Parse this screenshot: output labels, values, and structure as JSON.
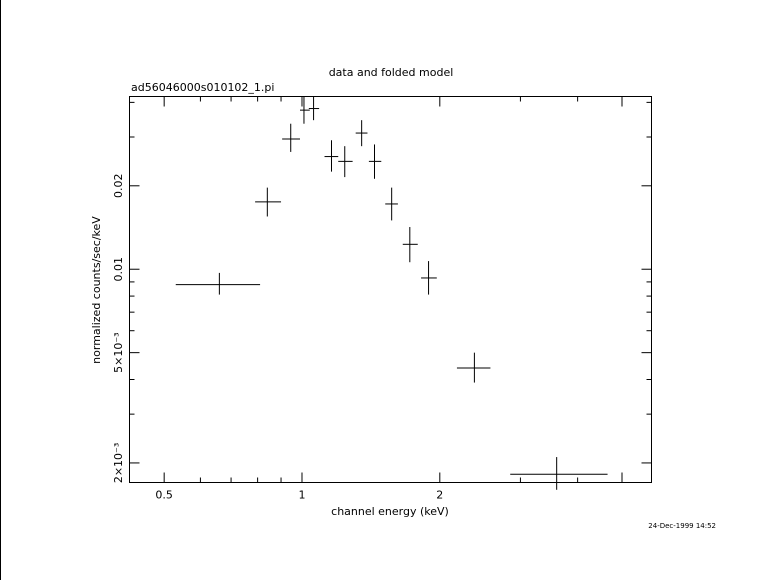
{
  "chart_data": {
    "type": "scatter",
    "title": "data and folded model",
    "subtitle": "ad56046000s010102_1.pi",
    "xlabel": "channel energy (keV)",
    "ylabel": "normalized counts/sec/keV",
    "xscale": "log",
    "yscale": "log",
    "xlim": [
      0.42,
      5.8
    ],
    "ylim": [
      0.0017,
      0.042
    ],
    "x_ticklabels": [
      "0.5",
      "1",
      "2"
    ],
    "y_ticklabels": [
      "2×10⁻³",
      "5×10⁻³",
      "0.01",
      "0.02"
    ],
    "timestamp": "24-Dec-1999 14:52",
    "series": [
      {
        "points": [
          {
            "x": 0.66,
            "xlo": 0.53,
            "xhi": 0.81,
            "y": 0.0088,
            "ylo": 0.0081,
            "yhi": 0.0097
          },
          {
            "x": 0.84,
            "xlo": 0.79,
            "xhi": 0.9,
            "y": 0.0175,
            "ylo": 0.0155,
            "yhi": 0.0197
          },
          {
            "x": 0.945,
            "xlo": 0.905,
            "xhi": 0.99,
            "y": 0.0295,
            "ylo": 0.0265,
            "yhi": 0.0335
          },
          {
            "x": 1.01,
            "xlo": 0.99,
            "xhi": 1.04,
            "y": 0.0375,
            "ylo": 0.0335,
            "yhi": 0.042
          },
          {
            "x": 1.06,
            "xlo": 1.035,
            "xhi": 1.09,
            "y": 0.038,
            "ylo": 0.0345,
            "yhi": 0.042
          },
          {
            "x": 1.16,
            "xlo": 1.12,
            "xhi": 1.2,
            "y": 0.0255,
            "ylo": 0.0225,
            "yhi": 0.0292
          },
          {
            "x": 1.24,
            "xlo": 1.2,
            "xhi": 1.29,
            "y": 0.0245,
            "ylo": 0.0215,
            "yhi": 0.0278
          },
          {
            "x": 1.35,
            "xlo": 1.31,
            "xhi": 1.39,
            "y": 0.031,
            "ylo": 0.0278,
            "yhi": 0.0345
          },
          {
            "x": 1.44,
            "xlo": 1.4,
            "xhi": 1.49,
            "y": 0.0245,
            "ylo": 0.0212,
            "yhi": 0.0282
          },
          {
            "x": 1.57,
            "xlo": 1.52,
            "xhi": 1.62,
            "y": 0.0172,
            "ylo": 0.015,
            "yhi": 0.0197
          },
          {
            "x": 1.72,
            "xlo": 1.66,
            "xhi": 1.79,
            "y": 0.0123,
            "ylo": 0.0106,
            "yhi": 0.0142
          },
          {
            "x": 1.89,
            "xlo": 1.82,
            "xhi": 1.97,
            "y": 0.0093,
            "ylo": 0.0081,
            "yhi": 0.0107
          },
          {
            "x": 2.38,
            "xlo": 2.18,
            "xhi": 2.58,
            "y": 0.0044,
            "ylo": 0.0039,
            "yhi": 0.005
          },
          {
            "x": 3.6,
            "xlo": 2.85,
            "xhi": 4.65,
            "y": 0.00182,
            "ylo": 0.0016,
            "yhi": 0.0021
          }
        ]
      }
    ]
  }
}
